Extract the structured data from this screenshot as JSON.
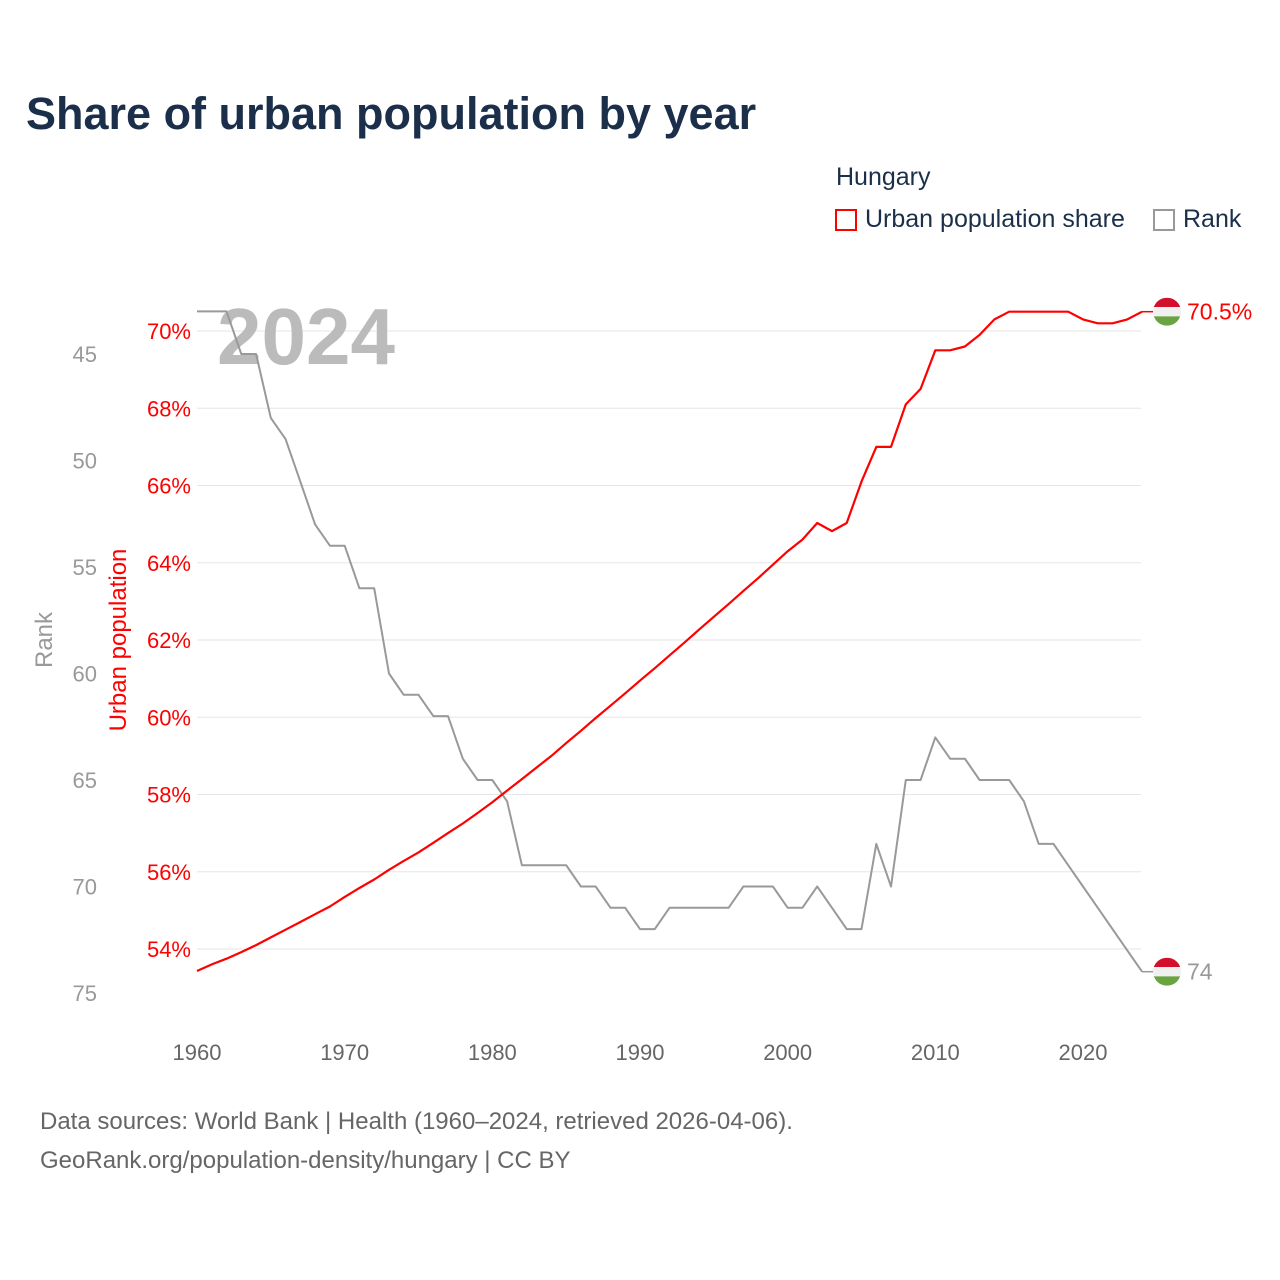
{
  "title": "Share of urban population by year",
  "legend": {
    "country": "Hungary",
    "items": [
      {
        "label": "Urban population share",
        "color": "#ff0000"
      },
      {
        "label": "Rank",
        "color": "#999999"
      }
    ]
  },
  "source": {
    "line1": "Data sources: World Bank | Health (1960–2024, retrieved 2026-04-06).",
    "line2": "GeoRank.org/population-density/hungary | CC BY"
  },
  "chart_data": {
    "type": "line",
    "title": "Share of urban population by year",
    "watermark_year": "2024",
    "x": [
      1960,
      1961,
      1962,
      1963,
      1964,
      1965,
      1966,
      1967,
      1968,
      1969,
      1970,
      1971,
      1972,
      1973,
      1974,
      1975,
      1976,
      1977,
      1978,
      1979,
      1980,
      1981,
      1982,
      1983,
      1984,
      1985,
      1986,
      1987,
      1988,
      1989,
      1990,
      1991,
      1992,
      1993,
      1994,
      1995,
      1996,
      1997,
      1998,
      1999,
      2000,
      2001,
      2002,
      2003,
      2004,
      2005,
      2006,
      2007,
      2008,
      2009,
      2010,
      2011,
      2012,
      2013,
      2014,
      2015,
      2016,
      2017,
      2018,
      2019,
      2020,
      2021,
      2022,
      2023,
      2024
    ],
    "xlim": [
      1960,
      2024
    ],
    "x_ticks": [
      "1960",
      "1970",
      "1980",
      "1990",
      "2000",
      "2010",
      "2020"
    ],
    "series": [
      {
        "name": "Urban population share",
        "axis": "left",
        "color": "#ff0000",
        "end_label": "70.5%",
        "values": [
          53.43,
          53.6,
          53.75,
          53.92,
          54.1,
          54.3,
          54.5,
          54.7,
          54.9,
          55.1,
          55.35,
          55.58,
          55.8,
          56.05,
          56.28,
          56.5,
          56.75,
          57.0,
          57.25,
          57.52,
          57.8,
          58.1,
          58.4,
          58.7,
          59.0,
          59.33,
          59.65,
          59.98,
          60.3,
          60.62,
          60.95,
          61.27,
          61.6,
          61.93,
          62.27,
          62.6,
          62.93,
          63.27,
          63.6,
          63.95,
          64.3,
          64.6,
          65.03,
          64.82,
          65.03,
          66.1,
          67.0,
          67.0,
          68.1,
          68.5,
          69.5,
          69.5,
          69.6,
          69.9,
          70.3,
          70.5,
          70.5,
          70.5,
          70.5,
          70.5,
          70.3,
          70.2,
          70.2,
          70.3,
          70.5
        ]
      },
      {
        "name": "Rank",
        "axis": "right-inverted",
        "color": "#999999",
        "end_label": "74",
        "values": [
          43,
          43,
          43,
          45,
          45,
          48,
          49,
          51,
          53,
          54,
          54,
          56,
          56,
          60,
          61,
          61,
          62,
          62,
          64,
          65,
          65,
          66,
          69,
          69,
          69,
          69,
          70,
          70,
          71,
          71,
          72,
          72,
          71,
          71,
          71,
          71,
          71,
          70,
          70,
          70,
          71,
          71,
          70,
          71,
          72,
          72,
          68,
          70,
          65,
          65,
          63,
          64,
          64,
          65,
          65,
          65,
          66,
          68,
          68,
          69,
          70,
          71,
          72,
          73,
          74
        ]
      }
    ],
    "left_axis": {
      "label": "Urban population",
      "ylim": [
        54,
        70
      ],
      "ticks": [
        "54%",
        "56%",
        "58%",
        "60%",
        "62%",
        "64%",
        "66%",
        "68%",
        "70%"
      ]
    },
    "rank_axis": {
      "label": "Rank",
      "ylim": [
        45,
        75
      ],
      "inverted": true,
      "ticks": [
        "45",
        "50",
        "55",
        "60",
        "65",
        "70",
        "75"
      ]
    },
    "grid": true,
    "legend_position": "top-right"
  }
}
